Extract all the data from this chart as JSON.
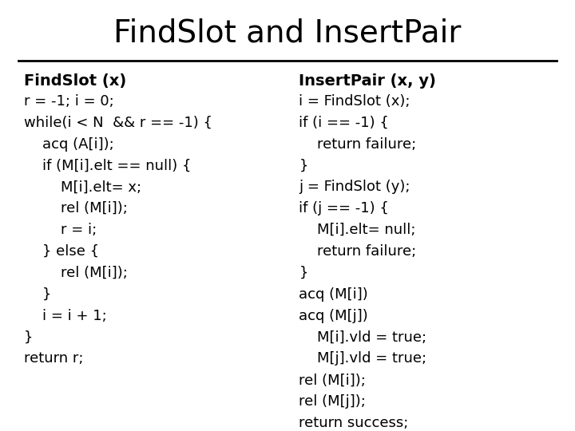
{
  "title": "FindSlot and InsertPair",
  "title_fontsize": 28,
  "bg_color": "#ffffff",
  "text_color": "#000000",
  "left_header": "FindSlot (x)",
  "right_header": "InsertPair (x, y)",
  "left_lines": [
    "r = -1; i = 0;",
    "while(i < N  && r == -1) {",
    "    acq (A[i]);",
    "    if (M[i].elt == null) {",
    "        M[i].elt= x;",
    "        rel (M[i]);",
    "        r = i;",
    "    } else {",
    "        rel (M[i]);",
    "    }",
    "    i = i + 1;",
    "}",
    "return r;"
  ],
  "right_lines": [
    "i = FindSlot (x);",
    "if (i == -1) {",
    "    return failure;",
    "}",
    "j = FindSlot (y);",
    "if (j == -1) {",
    "    M[i].elt= null;",
    "    return failure;",
    "}",
    "acq (M[i])",
    "acq (M[j])",
    "    M[i].vld = true;",
    "    M[j].vld = true;",
    "rel (M[i]);",
    "rel (M[j]);",
    "return success;"
  ],
  "header_fontsize": 14,
  "code_fontsize": 13,
  "figsize": [
    7.2,
    5.4
  ],
  "dpi": 100
}
